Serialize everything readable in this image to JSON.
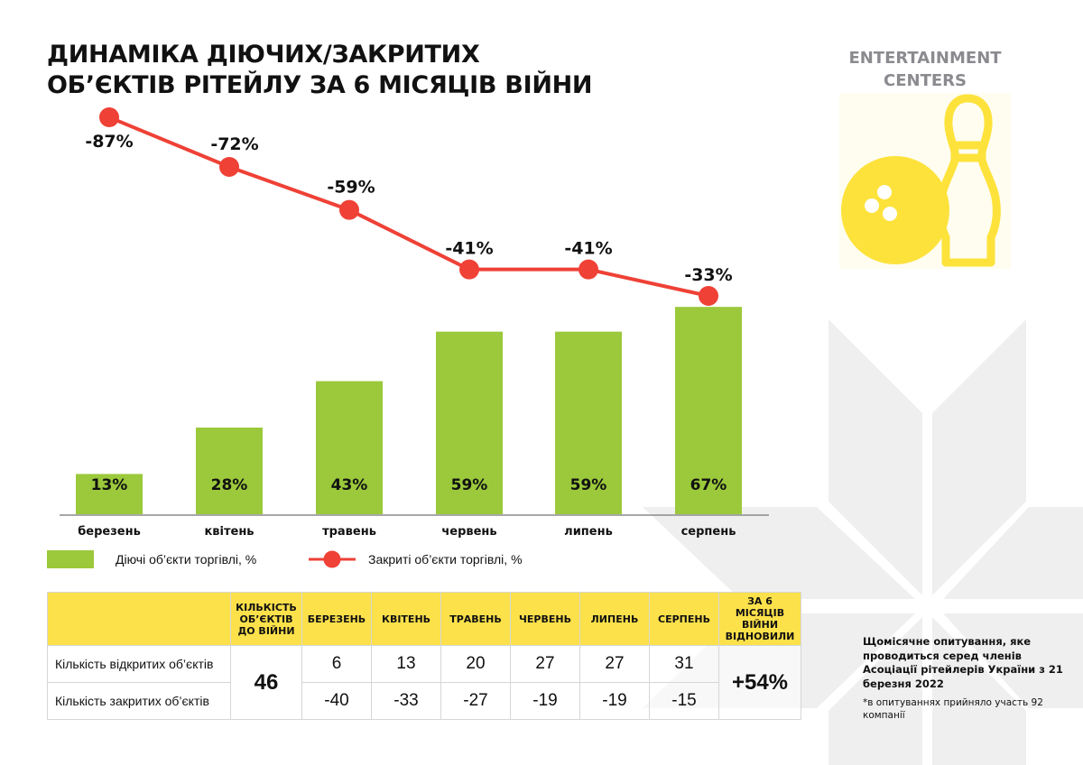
{
  "title": {
    "line1": "ДИНАМІКА ДІЮЧИХ/ЗАКРИТИХ",
    "line2": "ОБ’ЄКТІВ РІТЕЙЛУ ЗА 6 МІСЯЦІВ ВІЙНИ"
  },
  "brand": {
    "line1": "ENTERTAINMENT",
    "line2": "CENTERS",
    "icon": "bowling-icon",
    "color": "#fde23b"
  },
  "chart_data": {
    "type": "bar",
    "categories": [
      "березень",
      "квітень",
      "травень",
      "червень",
      "липень",
      "серпень"
    ],
    "series": [
      {
        "name": "Діючі об’єкти торгівлі, %",
        "type": "bar",
        "color": "#9bc93b",
        "values": [
          13,
          28,
          43,
          59,
          59,
          67
        ],
        "labels": [
          "13%",
          "28%",
          "43%",
          "59%",
          "59%",
          "67%"
        ]
      },
      {
        "name": "Закриті об’єкти торгівлі, %",
        "type": "line",
        "color": "#ef4136",
        "values": [
          -87,
          -72,
          -59,
          -41,
          -41,
          -33
        ],
        "labels": [
          "-87%",
          "-72%",
          "-59%",
          "-41%",
          "-41%",
          "-33%"
        ]
      }
    ],
    "title": "ДИНАМІКА ДІЮЧИХ/ЗАКРИТИХ ОБ’ЄКТІВ РІТЕЙЛУ ЗА 6 МІСЯЦІВ ВІЙНИ",
    "xlabel": "",
    "ylabel": "",
    "grid": false,
    "legend": "bottom-left"
  },
  "legend": {
    "bars": "Діючі об’єкти торгівлі, %",
    "line": "Закриті об’єкти торгівлі, %"
  },
  "table": {
    "headers": {
      "prewar": "КІЛЬКІСТЬ ОБ’ЄКТІВ ДО ВІЙНИ",
      "months": [
        "БЕРЕЗЕНЬ",
        "КВІТЕНЬ",
        "ТРАВЕНЬ",
        "ЧЕРВЕНЬ",
        "ЛИПЕНЬ",
        "СЕРПЕНЬ"
      ],
      "recovered": "ЗА 6 МІСЯЦІВ ВІЙНИ ВІДНОВИЛИ"
    },
    "rows": [
      {
        "label": "Кількість відкритих об’єктів",
        "values": [
          "6",
          "13",
          "20",
          "27",
          "27",
          "31"
        ]
      },
      {
        "label": "Кількість закритих об’єктів",
        "values": [
          "-40",
          "-33",
          "-27",
          "-19",
          "-19",
          "-15"
        ]
      }
    ],
    "prewar_count": "46",
    "recovered_value": "+54%"
  },
  "note": {
    "main": "Щомісячне опитування, яке проводиться серед членів Асоціації рітейлерів України з 21 березня 2022",
    "footnote": "*в опитуваннях прийняло участь 92 компанії"
  }
}
